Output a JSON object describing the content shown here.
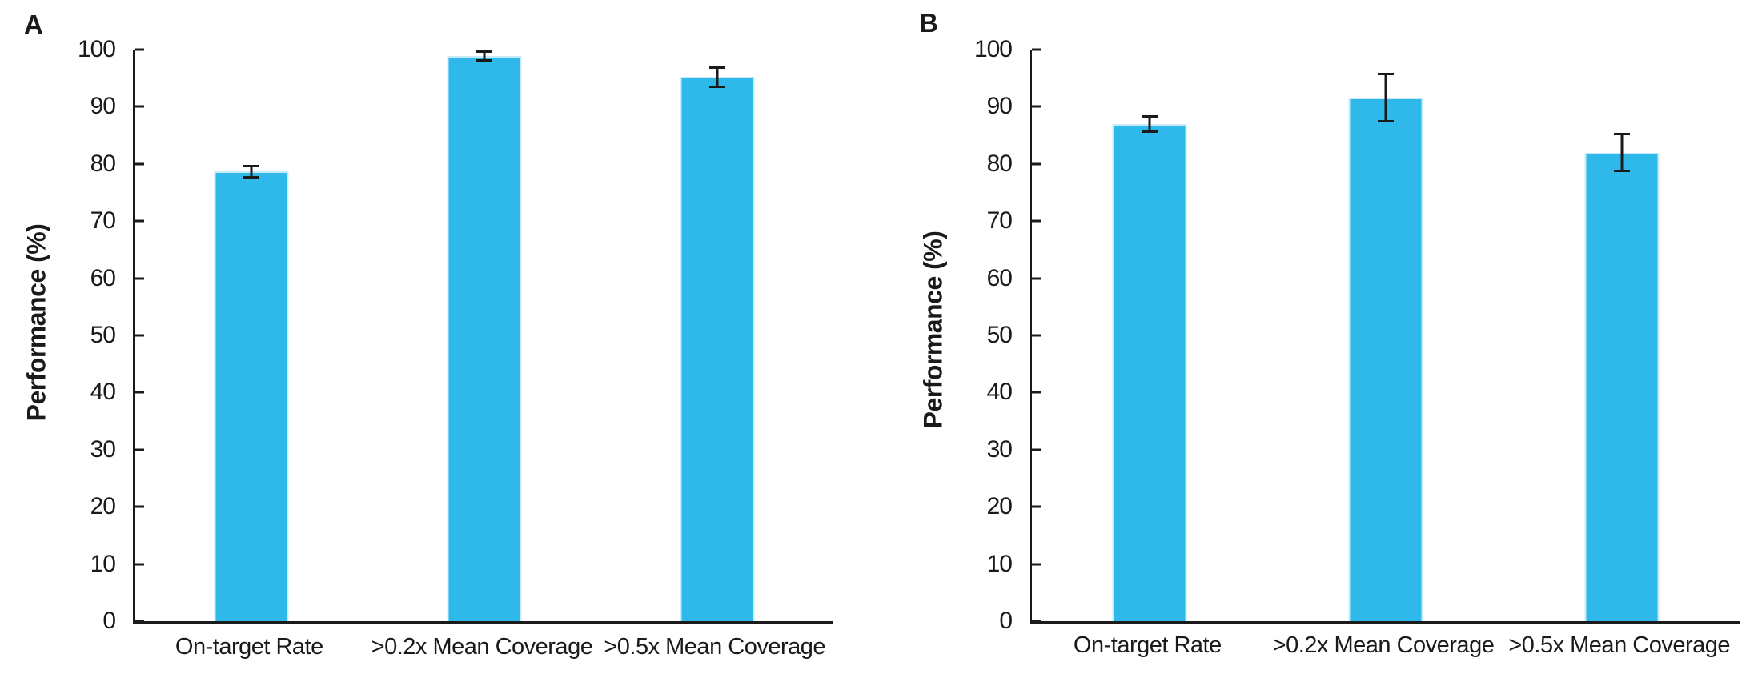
{
  "figure": {
    "background": "#ffffff",
    "text_color": "#1a1a1a"
  },
  "chart_data": [
    {
      "type": "bar",
      "panel_label": "A",
      "title": "",
      "xlabel": "",
      "ylabel": "Performance (%)",
      "ylim": [
        0,
        100
      ],
      "yticks": [
        100,
        90,
        80,
        70,
        60,
        50,
        40,
        30,
        20,
        10,
        0
      ],
      "categories": [
        "On-target Rate",
        ">0.2x Mean Coverage",
        ">0.5x Mean Coverage"
      ],
      "values": [
        78.7,
        98.9,
        95.2
      ],
      "errors": [
        1.2,
        1.0,
        1.9
      ],
      "bar_color": "#2EB9EA",
      "bar_edge_color": "#C9EBF9",
      "axis_color": "#1a1a1a",
      "grid": false,
      "legend_position": "none"
    },
    {
      "type": "bar",
      "panel_label": "B",
      "title": "",
      "xlabel": "",
      "ylabel": "Performance (%)",
      "ylim": [
        0,
        100
      ],
      "yticks": [
        100,
        90,
        80,
        70,
        60,
        50,
        40,
        30,
        20,
        10,
        0
      ],
      "categories": [
        "On-target Rate",
        ">0.2x Mean Coverage",
        ">0.5x Mean Coverage"
      ],
      "values": [
        87.0,
        91.6,
        82.0
      ],
      "errors": [
        1.5,
        4.3,
        3.4
      ],
      "bar_color": "#2EB9EA",
      "bar_edge_color": "#C9EBF9",
      "axis_color": "#1a1a1a",
      "grid": false,
      "legend_position": "none"
    }
  ]
}
